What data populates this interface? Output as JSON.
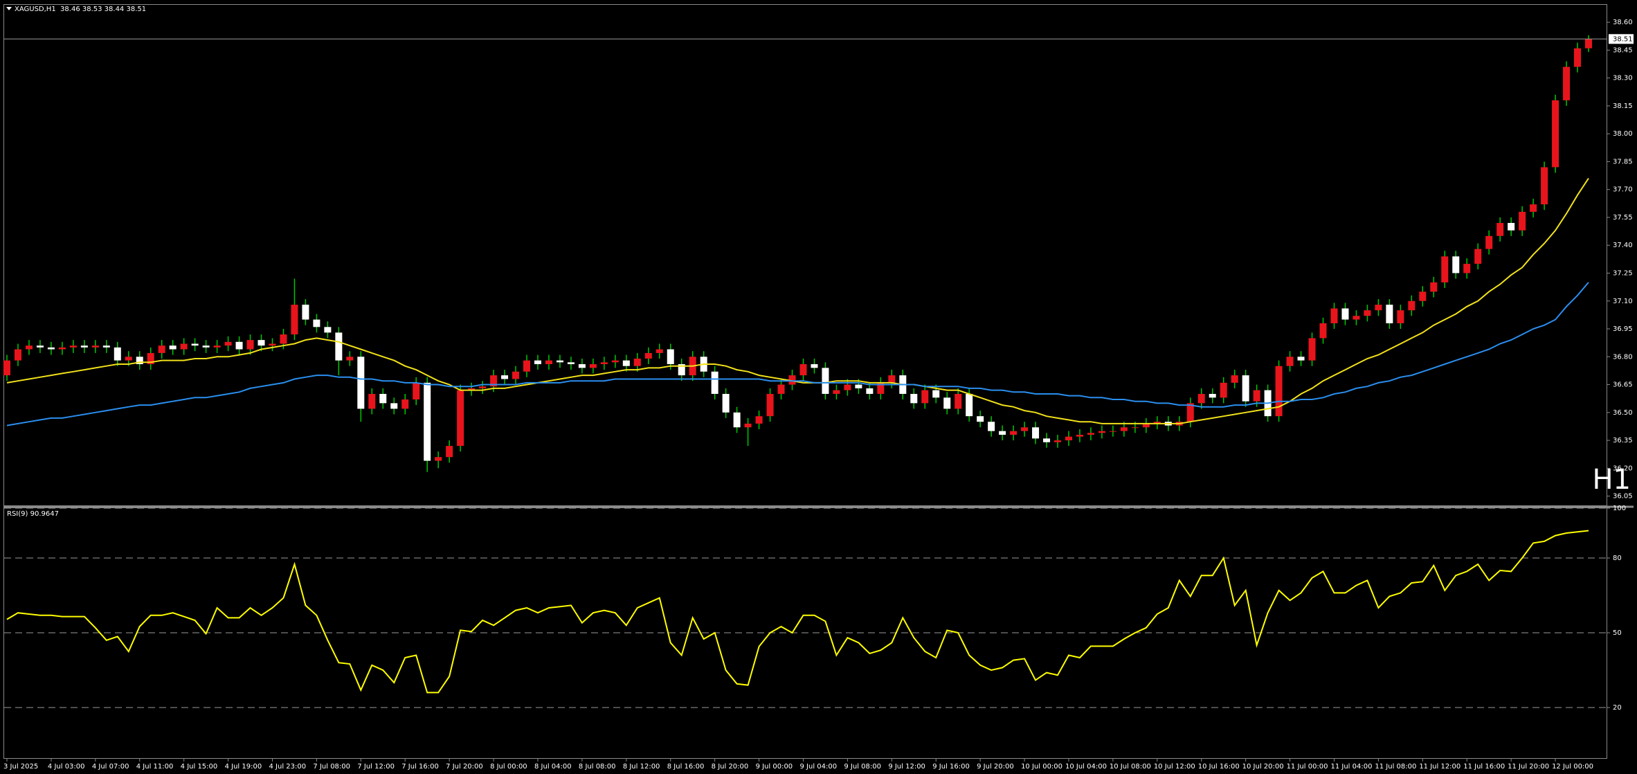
{
  "chart_data": [
    {
      "type": "candlestick",
      "title": "XAGUSD,H1  38.46 38.53 38.44 38.51",
      "timeframe_label": "H1",
      "timeframe_color": "#e8141c",
      "bull_color": "#e8141c",
      "bear_color": "#ffffff",
      "wick_color": "#00c800",
      "last_price": 38.51,
      "grid": false,
      "ylim": [
        36.0,
        38.69
      ],
      "yticks": [
        36.05,
        {
          "value": 36.2,
          "label": "36.20"
        },
        36.35,
        {
          "value": 36.5,
          "label": "36.50"
        },
        36.65,
        {
          "value": 36.8,
          "label": "36.80"
        },
        36.95,
        {
          "value": 37.1,
          "label": "37.10"
        },
        37.25,
        {
          "value": 37.4,
          "label": "37.40"
        },
        37.55,
        {
          "value": 37.7,
          "label": "37.70"
        },
        37.85,
        {
          "value": 38.0,
          "label": "38.00"
        },
        38.15,
        {
          "value": 38.3,
          "label": "38.30"
        },
        38.45,
        {
          "value": 38.6,
          "label": "38.60"
        }
      ],
      "categories": [
        "3 Jul 2025",
        null,
        null,
        null,
        "4 Jul 03:00",
        null,
        null,
        null,
        "4 Jul 07:00",
        null,
        null,
        null,
        "4 Jul 11:00",
        null,
        null,
        null,
        "4 Jul 15:00",
        null,
        null,
        null,
        "4 Jul 19:00",
        null,
        null,
        null,
        "4 Jul 23:00",
        null,
        null,
        null,
        "7 Jul 08:00",
        null,
        null,
        null,
        "7 Jul 12:00",
        null,
        null,
        null,
        "7 Jul 16:00",
        null,
        null,
        null,
        "7 Jul 20:00",
        null,
        null,
        null,
        "8 Jul 00:00",
        null,
        null,
        null,
        "8 Jul 04:00",
        null,
        null,
        null,
        "8 Jul 08:00",
        null,
        null,
        null,
        "8 Jul 12:00",
        null,
        null,
        null,
        "8 Jul 16:00",
        null,
        null,
        null,
        "8 Jul 20:00",
        null,
        null,
        null,
        "9 Jul 00:00",
        null,
        null,
        null,
        "9 Jul 04:00",
        null,
        null,
        null,
        "9 Jul 08:00",
        null,
        null,
        null,
        "9 Jul 12:00",
        null,
        null,
        null,
        "9 Jul 16:00",
        null,
        null,
        null,
        "9 Jul 20:00",
        null,
        null,
        null,
        "10 Jul 00:00",
        null,
        null,
        null,
        "10 Jul 04:00",
        null,
        null,
        null,
        "10 Jul 08:00",
        null,
        null,
        null,
        "10 Jul 12:00",
        null,
        null,
        null,
        "10 Jul 16:00",
        null,
        null,
        null,
        "10 Jul 20:00",
        null,
        null,
        null,
        "11 Jul 00:00",
        null,
        null,
        null,
        "11 Jul 04:00",
        null,
        null,
        null,
        "11 Jul 08:00",
        null,
        null,
        null,
        "11 Jul 12:00",
        null,
        null,
        null,
        "11 Jul 16:00",
        null,
        null,
        null,
        "11 Jul 20:00",
        null,
        null,
        null,
        "12 Jul 00:00",
        null,
        null,
        null
      ],
      "open": [
        36.7,
        36.78,
        36.84,
        36.86,
        36.85,
        36.84,
        36.85,
        36.86,
        36.85,
        36.86,
        36.85,
        36.78,
        36.8,
        36.76,
        36.82,
        36.86,
        36.84,
        36.87,
        36.86,
        36.85,
        36.86,
        36.88,
        36.84,
        36.89,
        36.86,
        36.87,
        36.92,
        37.08,
        37,
        36.96,
        36.93,
        36.78,
        36.8,
        36.52,
        36.6,
        36.55,
        36.52,
        36.57,
        36.66,
        36.24,
        36.26,
        36.32,
        36.62,
        36.63,
        36.64,
        36.7,
        36.68,
        36.72,
        36.78,
        36.76,
        36.78,
        36.77,
        36.76,
        36.74,
        36.76,
        36.77,
        36.78,
        36.75,
        36.79,
        36.82,
        36.84,
        36.76,
        36.7,
        36.8,
        36.72,
        36.6,
        36.5,
        36.42,
        36.44,
        36.48,
        36.6,
        36.65,
        36.7,
        36.76,
        36.74,
        36.6,
        36.62,
        36.65,
        36.63,
        36.6,
        36.66,
        36.7,
        36.6,
        36.55,
        36.62,
        36.58,
        36.52,
        36.6,
        36.48,
        36.45,
        36.4,
        36.38,
        36.4,
        36.42,
        36.36,
        36.34,
        36.35,
        36.37,
        36.38,
        36.39,
        36.4,
        36.4,
        36.42,
        36.42,
        36.44,
        36.45,
        36.43,
        36.45,
        36.55,
        36.6,
        36.58,
        36.66,
        36.7,
        36.56,
        36.62,
        36.48,
        36.75,
        36.8,
        36.78,
        36.9,
        36.98,
        37.06,
        37,
        37.02,
        37.05,
        37.08,
        36.98,
        37.05,
        37.1,
        37.15,
        37.2,
        37.34,
        37.25,
        37.3,
        37.38,
        37.45,
        37.52,
        37.48,
        37.58,
        37.62,
        37.82,
        38.18,
        38.36,
        38.46
      ],
      "high": [
        36.81,
        36.87,
        36.89,
        36.89,
        36.88,
        36.88,
        36.89,
        36.89,
        36.89,
        36.89,
        36.88,
        36.83,
        36.83,
        36.85,
        36.89,
        36.89,
        36.9,
        36.9,
        36.89,
        36.89,
        36.91,
        36.91,
        36.92,
        36.92,
        36.9,
        36.95,
        37.22,
        37.11,
        37.03,
        36.99,
        36.96,
        36.83,
        36.83,
        36.63,
        36.63,
        36.58,
        36.6,
        36.69,
        36.69,
        36.29,
        36.35,
        36.65,
        36.66,
        36.67,
        36.73,
        36.73,
        36.75,
        36.81,
        36.81,
        36.81,
        36.81,
        36.8,
        36.79,
        36.79,
        36.8,
        36.81,
        36.81,
        36.82,
        36.85,
        36.87,
        36.87,
        36.79,
        36.83,
        36.83,
        36.75,
        36.63,
        36.53,
        36.47,
        36.51,
        36.63,
        36.68,
        36.73,
        36.79,
        36.79,
        36.77,
        36.65,
        36.68,
        36.68,
        36.66,
        36.69,
        36.73,
        36.73,
        36.63,
        36.65,
        36.65,
        36.61,
        36.63,
        36.63,
        36.51,
        36.48,
        36.43,
        36.43,
        36.45,
        36.45,
        36.39,
        36.38,
        36.4,
        36.41,
        36.42,
        36.43,
        36.43,
        36.45,
        36.45,
        36.47,
        36.48,
        36.48,
        36.48,
        36.58,
        36.63,
        36.63,
        36.69,
        36.73,
        36.73,
        36.65,
        36.65,
        36.78,
        36.83,
        36.83,
        36.93,
        37.01,
        37.09,
        37.09,
        37.05,
        37.08,
        37.11,
        37.11,
        37.08,
        37.13,
        37.18,
        37.23,
        37.37,
        37.37,
        37.33,
        37.41,
        37.48,
        37.55,
        37.55,
        37.61,
        37.65,
        37.85,
        38.21,
        38.39,
        38.49,
        38.53
      ],
      "low": [
        36.67,
        36.75,
        36.81,
        36.82,
        36.81,
        36.81,
        36.82,
        36.82,
        36.82,
        36.82,
        36.75,
        36.75,
        36.73,
        36.73,
        36.79,
        36.81,
        36.81,
        36.83,
        36.82,
        36.82,
        36.83,
        36.81,
        36.81,
        36.83,
        36.83,
        36.84,
        36.89,
        36.97,
        36.93,
        36.9,
        36.7,
        36.75,
        36.45,
        36.49,
        36.52,
        36.49,
        36.49,
        36.54,
        36.18,
        36.2,
        36.23,
        36.29,
        36.59,
        36.6,
        36.61,
        36.65,
        36.65,
        36.69,
        36.73,
        36.73,
        36.74,
        36.73,
        36.71,
        36.71,
        36.73,
        36.74,
        36.72,
        36.72,
        36.76,
        36.79,
        36.73,
        36.67,
        36.67,
        36.69,
        36.57,
        36.47,
        36.39,
        36.32,
        36.41,
        36.45,
        36.57,
        36.62,
        36.67,
        36.71,
        36.57,
        36.57,
        36.59,
        36.6,
        36.57,
        36.57,
        36.63,
        36.57,
        36.52,
        36.52,
        36.55,
        36.49,
        36.49,
        36.45,
        36.42,
        36.37,
        36.35,
        36.35,
        36.37,
        36.33,
        36.31,
        36.31,
        36.32,
        36.34,
        36.35,
        36.36,
        36.37,
        36.37,
        36.39,
        36.39,
        36.41,
        36.4,
        36.4,
        36.42,
        36.52,
        36.55,
        36.55,
        36.63,
        36.53,
        36.53,
        36.45,
        36.45,
        36.72,
        36.75,
        36.75,
        36.87,
        36.95,
        36.97,
        36.97,
        36.99,
        37.02,
        36.95,
        36.95,
        37.02,
        37.07,
        37.12,
        37.17,
        37.22,
        37.22,
        37.27,
        37.35,
        37.42,
        37.45,
        37.45,
        37.55,
        37.59,
        37.79,
        38.15,
        38.33,
        38.44
      ],
      "close": [
        36.78,
        36.84,
        36.86,
        36.85,
        36.84,
        36.85,
        36.86,
        36.85,
        36.86,
        36.85,
        36.78,
        36.8,
        36.76,
        36.82,
        36.86,
        36.84,
        36.87,
        36.86,
        36.85,
        36.86,
        36.88,
        36.84,
        36.89,
        36.86,
        36.87,
        36.92,
        37.08,
        37,
        36.96,
        36.93,
        36.78,
        36.8,
        36.52,
        36.6,
        36.55,
        36.52,
        36.57,
        36.66,
        36.24,
        36.26,
        36.32,
        36.62,
        36.63,
        36.64,
        36.7,
        36.68,
        36.72,
        36.78,
        36.76,
        36.78,
        36.77,
        36.76,
        36.74,
        36.76,
        36.77,
        36.78,
        36.75,
        36.79,
        36.82,
        36.84,
        36.76,
        36.7,
        36.8,
        36.72,
        36.6,
        36.5,
        36.42,
        36.44,
        36.48,
        36.6,
        36.65,
        36.7,
        36.76,
        36.74,
        36.6,
        36.62,
        36.65,
        36.63,
        36.6,
        36.66,
        36.7,
        36.6,
        36.55,
        36.62,
        36.58,
        36.52,
        36.6,
        36.48,
        36.45,
        36.4,
        36.38,
        36.4,
        36.42,
        36.36,
        36.34,
        36.35,
        36.37,
        36.38,
        36.39,
        36.4,
        36.4,
        36.42,
        36.42,
        36.44,
        36.45,
        36.43,
        36.45,
        36.55,
        36.6,
        36.58,
        36.66,
        36.7,
        36.56,
        36.62,
        36.48,
        36.75,
        36.8,
        36.78,
        36.9,
        36.98,
        37.06,
        37,
        37.02,
        37.05,
        37.08,
        36.98,
        37.05,
        37.1,
        37.15,
        37.2,
        37.34,
        37.25,
        37.3,
        37.38,
        37.45,
        37.52,
        37.48,
        37.58,
        37.62,
        37.82,
        38.18,
        38.36,
        38.46,
        38.51
      ],
      "series": [
        {
          "color": "#f2e21a",
          "values": [
            36.66,
            36.67,
            36.68,
            36.69,
            36.7,
            36.71,
            36.72,
            36.73,
            36.74,
            36.75,
            36.76,
            36.76,
            36.77,
            36.77,
            36.78,
            36.78,
            36.78,
            36.79,
            36.79,
            36.8,
            36.8,
            36.81,
            36.82,
            36.84,
            36.85,
            36.86,
            36.87,
            36.89,
            36.9,
            36.89,
            36.88,
            36.86,
            36.84,
            36.82,
            36.8,
            36.78,
            36.75,
            36.73,
            36.7,
            36.67,
            36.65,
            36.62,
            36.62,
            36.62,
            36.63,
            36.63,
            36.64,
            36.65,
            36.66,
            36.67,
            36.68,
            36.69,
            36.7,
            36.7,
            36.71,
            36.72,
            36.73,
            36.73,
            36.74,
            36.74,
            36.75,
            36.75,
            36.75,
            36.76,
            36.76,
            36.75,
            36.73,
            36.72,
            36.7,
            36.69,
            36.68,
            36.67,
            36.66,
            36.66,
            36.66,
            36.67,
            36.67,
            36.67,
            36.66,
            36.66,
            36.66,
            36.65,
            36.65,
            36.64,
            36.63,
            36.62,
            36.62,
            36.6,
            36.58,
            36.56,
            36.54,
            36.53,
            36.51,
            36.5,
            36.48,
            36.47,
            36.46,
            36.45,
            36.45,
            36.44,
            36.44,
            36.44,
            36.44,
            36.44,
            36.44,
            36.44,
            36.44,
            36.45,
            36.46,
            36.47,
            36.48,
            36.49,
            36.5,
            36.51,
            36.52,
            36.53,
            36.56,
            36.6,
            36.63,
            36.67,
            36.7,
            36.73,
            36.76,
            36.79,
            36.81,
            36.84,
            36.87,
            36.9,
            36.93,
            36.97,
            37.0,
            37.03,
            37.07,
            37.1,
            37.15,
            37.19,
            37.24,
            37.28,
            37.35,
            37.41,
            37.48,
            37.57,
            37.67,
            37.76
          ]
        },
        {
          "color": "#2a8ff0",
          "values": [
            36.43,
            36.44,
            36.45,
            36.46,
            36.47,
            36.47,
            36.48,
            36.49,
            36.5,
            36.51,
            36.52,
            36.53,
            36.54,
            36.54,
            36.55,
            36.56,
            36.57,
            36.58,
            36.58,
            36.59,
            36.6,
            36.61,
            36.63,
            36.64,
            36.65,
            36.66,
            36.68,
            36.69,
            36.7,
            36.7,
            36.69,
            36.69,
            36.68,
            36.68,
            36.67,
            36.67,
            36.66,
            36.66,
            36.65,
            36.65,
            36.64,
            36.64,
            36.64,
            36.65,
            36.65,
            36.65,
            36.65,
            36.66,
            36.66,
            36.66,
            36.66,
            36.67,
            36.67,
            36.67,
            36.67,
            36.68,
            36.68,
            36.68,
            36.68,
            36.68,
            36.68,
            36.68,
            36.68,
            36.68,
            36.68,
            36.68,
            36.68,
            36.68,
            36.68,
            36.67,
            36.67,
            36.67,
            36.67,
            36.66,
            36.66,
            36.66,
            36.66,
            36.66,
            36.65,
            36.65,
            36.65,
            36.65,
            36.65,
            36.64,
            36.64,
            36.64,
            36.64,
            36.63,
            36.63,
            36.62,
            36.62,
            36.61,
            36.61,
            36.6,
            36.6,
            36.6,
            36.59,
            36.59,
            36.58,
            36.58,
            36.57,
            36.57,
            36.56,
            36.56,
            36.55,
            36.55,
            36.54,
            36.54,
            36.53,
            36.53,
            36.53,
            36.54,
            36.54,
            36.55,
            36.55,
            36.56,
            36.56,
            36.57,
            36.57,
            36.58,
            36.6,
            36.61,
            36.63,
            36.64,
            36.66,
            36.67,
            36.69,
            36.7,
            36.72,
            36.74,
            36.76,
            36.78,
            36.8,
            36.82,
            36.84,
            36.87,
            36.89,
            36.92,
            36.95,
            36.97,
            37.0,
            37.07,
            37.13,
            37.2
          ]
        }
      ]
    },
    {
      "type": "line",
      "title": "RSI(9) 90.9647",
      "color": "#ffff00",
      "dashed_grid": true,
      "ylim": [
        0,
        100
      ],
      "yticks": [
        100,
        80,
        50,
        20
      ],
      "values": [
        55.4,
        58,
        57.5,
        57,
        57,
        56.5,
        56.5,
        56.5,
        52,
        47,
        48.5,
        42.5,
        52.5,
        57,
        57,
        58,
        56.5,
        55,
        49.6,
        60,
        56,
        56,
        60,
        57,
        60,
        64,
        77.5,
        61,
        57,
        47,
        38,
        37.5,
        27,
        37,
        35,
        30,
        40,
        41,
        26,
        26,
        32.5,
        51,
        50.5,
        55,
        53,
        56,
        59,
        60,
        58,
        60,
        60.5,
        61,
        54,
        58,
        59,
        58,
        53,
        60,
        62,
        64,
        46,
        41,
        56,
        47.5,
        50,
        35,
        29.5,
        29,
        44.5,
        50,
        52.5,
        50,
        57,
        57,
        54.6,
        41,
        48,
        46,
        41.7,
        43,
        46,
        56,
        48,
        42.5,
        40,
        51,
        50,
        41,
        37,
        35,
        36,
        39,
        39.6,
        31,
        34,
        33,
        41,
        40,
        44.6,
        44.6,
        44.6,
        47.5,
        50,
        52,
        57.5,
        60,
        71,
        64.6,
        73,
        73,
        80,
        61,
        67,
        45,
        58,
        67,
        63,
        66,
        72,
        74.6,
        66,
        66,
        69,
        71,
        60,
        64.6,
        66,
        70,
        70.5,
        77,
        67,
        73,
        74.6,
        77.5,
        71,
        75,
        74.6,
        80,
        86,
        86.7,
        89,
        90,
        90.5,
        90.9647
      ]
    }
  ]
}
